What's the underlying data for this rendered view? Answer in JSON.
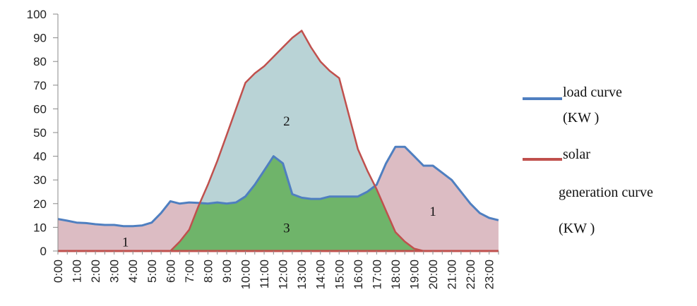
{
  "chart_data": {
    "type": "area",
    "title": "",
    "xlabel": "",
    "ylabel": "",
    "ylim": [
      0,
      100
    ],
    "yticks": [
      0,
      10,
      20,
      30,
      40,
      50,
      60,
      70,
      80,
      90,
      100
    ],
    "x_tick_labels": [
      "0:00",
      "1:00",
      "2:00",
      "3:00",
      "4:00",
      "5:00",
      "6:00",
      "7:00",
      "8:00",
      "9:00",
      "10:00",
      "11:00",
      "12:00",
      "13:00",
      "14:00",
      "15:00",
      "16:00",
      "17:00",
      "18:00",
      "19:00",
      "20:00",
      "21:00",
      "22:00",
      "23:00"
    ],
    "grid": false,
    "legend_position": "right",
    "series": [
      {
        "name": "load curve (KW )",
        "color": "#4f7fc0",
        "x": [
          0,
          0.5,
          1,
          1.5,
          2,
          2.5,
          3,
          3.5,
          4,
          4.5,
          5,
          5.5,
          6,
          6.5,
          7,
          7.5,
          8,
          8.5,
          9,
          9.5,
          10,
          10.5,
          11,
          11.5,
          12,
          12.5,
          13,
          13.5,
          14,
          14.5,
          15,
          15.5,
          16,
          16.5,
          17,
          17.5,
          18,
          18.5,
          19,
          19.5,
          20,
          20.5,
          21,
          21.5,
          22,
          22.5,
          23,
          23.5
        ],
        "values": [
          13.5,
          12.8,
          12,
          11.8,
          11.3,
          11,
          11,
          10.5,
          10.5,
          10.8,
          12,
          16,
          21,
          20,
          20.5,
          20.3,
          20,
          20.5,
          20,
          20.5,
          23,
          28,
          34,
          40,
          37,
          24,
          22.5,
          22,
          22,
          23,
          23,
          23,
          23,
          25,
          28,
          37,
          44,
          44,
          40,
          36,
          36,
          33,
          30,
          25,
          20,
          16,
          14,
          13
        ]
      },
      {
        "name": "solar generation curve (KW )",
        "color": "#c0504d",
        "x": [
          0,
          5.5,
          6,
          6.5,
          7,
          7.5,
          8,
          8.5,
          9,
          9.5,
          10,
          10.5,
          11,
          11.5,
          12,
          12.5,
          13,
          13.5,
          14,
          14.5,
          15,
          15.5,
          16,
          16.5,
          17,
          17.5,
          18,
          18.5,
          19,
          19.5,
          20,
          23.5
        ],
        "values": [
          0,
          0,
          0,
          4,
          9,
          19,
          28,
          38,
          49,
          60,
          71,
          75,
          78,
          82,
          86,
          90,
          93,
          86,
          80,
          76,
          73,
          58,
          43,
          34,
          26,
          17,
          8,
          4,
          1,
          0,
          0,
          0
        ]
      }
    ],
    "region_labels": [
      "1",
      "2",
      "3",
      "1"
    ]
  },
  "legend": {
    "load_line1": "load curve",
    "load_line2": "(KW )",
    "solar_line1": "solar",
    "solar_line2": "generation curve",
    "solar_line3": "(KW )"
  }
}
